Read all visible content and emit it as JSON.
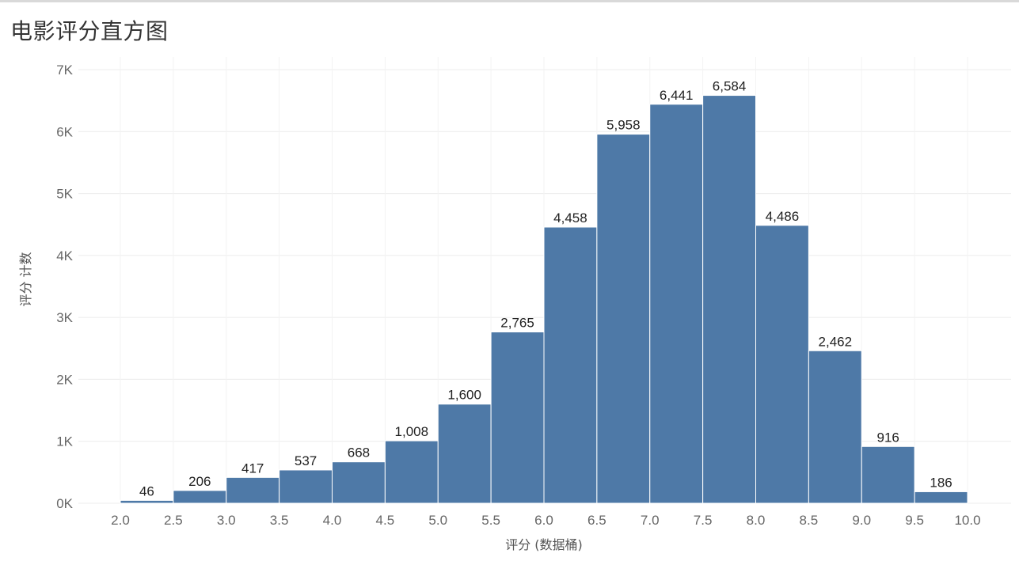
{
  "title": "电影评分直方图",
  "chart_data": {
    "type": "bar",
    "title": "电影评分直方图",
    "xlabel": "评分 (数据桶)",
    "ylabel": "评分 计数",
    "bin_edges": [
      2.0,
      2.5,
      3.0,
      3.5,
      4.0,
      4.5,
      5.0,
      5.5,
      6.0,
      6.5,
      7.0,
      7.5,
      8.0,
      8.5,
      9.0,
      9.5,
      10.0
    ],
    "x_tick_labels": [
      "2.0",
      "2.5",
      "3.0",
      "3.5",
      "4.0",
      "4.5",
      "5.0",
      "5.5",
      "6.0",
      "6.5",
      "7.0",
      "7.5",
      "8.0",
      "8.5",
      "9.0",
      "9.5",
      "10.0"
    ],
    "categories": [
      "2.0",
      "2.5",
      "3.0",
      "3.5",
      "4.0",
      "4.5",
      "5.0",
      "5.5",
      "6.0",
      "6.5",
      "7.0",
      "7.5",
      "8.0",
      "8.5",
      "9.0",
      "9.5"
    ],
    "values": [
      46,
      206,
      417,
      537,
      668,
      1008,
      1600,
      2765,
      4458,
      5958,
      6441,
      6584,
      4486,
      2462,
      916,
      186
    ],
    "data_labels": [
      "46",
      "206",
      "417",
      "537",
      "668",
      "1,008",
      "1,600",
      "2,765",
      "4,458",
      "5,958",
      "6,441",
      "6,584",
      "4,486",
      "2,462",
      "916",
      "186"
    ],
    "y_ticks": [
      0,
      1000,
      2000,
      3000,
      4000,
      5000,
      6000,
      7000
    ],
    "y_tick_labels": [
      "0K",
      "1K",
      "2K",
      "3K",
      "4K",
      "5K",
      "6K",
      "7K"
    ],
    "ylim": [
      0,
      7000
    ],
    "grid": true,
    "colors": {
      "bar": "#4e79a7",
      "grid": "#ececec",
      "background": "#ffffff"
    }
  }
}
